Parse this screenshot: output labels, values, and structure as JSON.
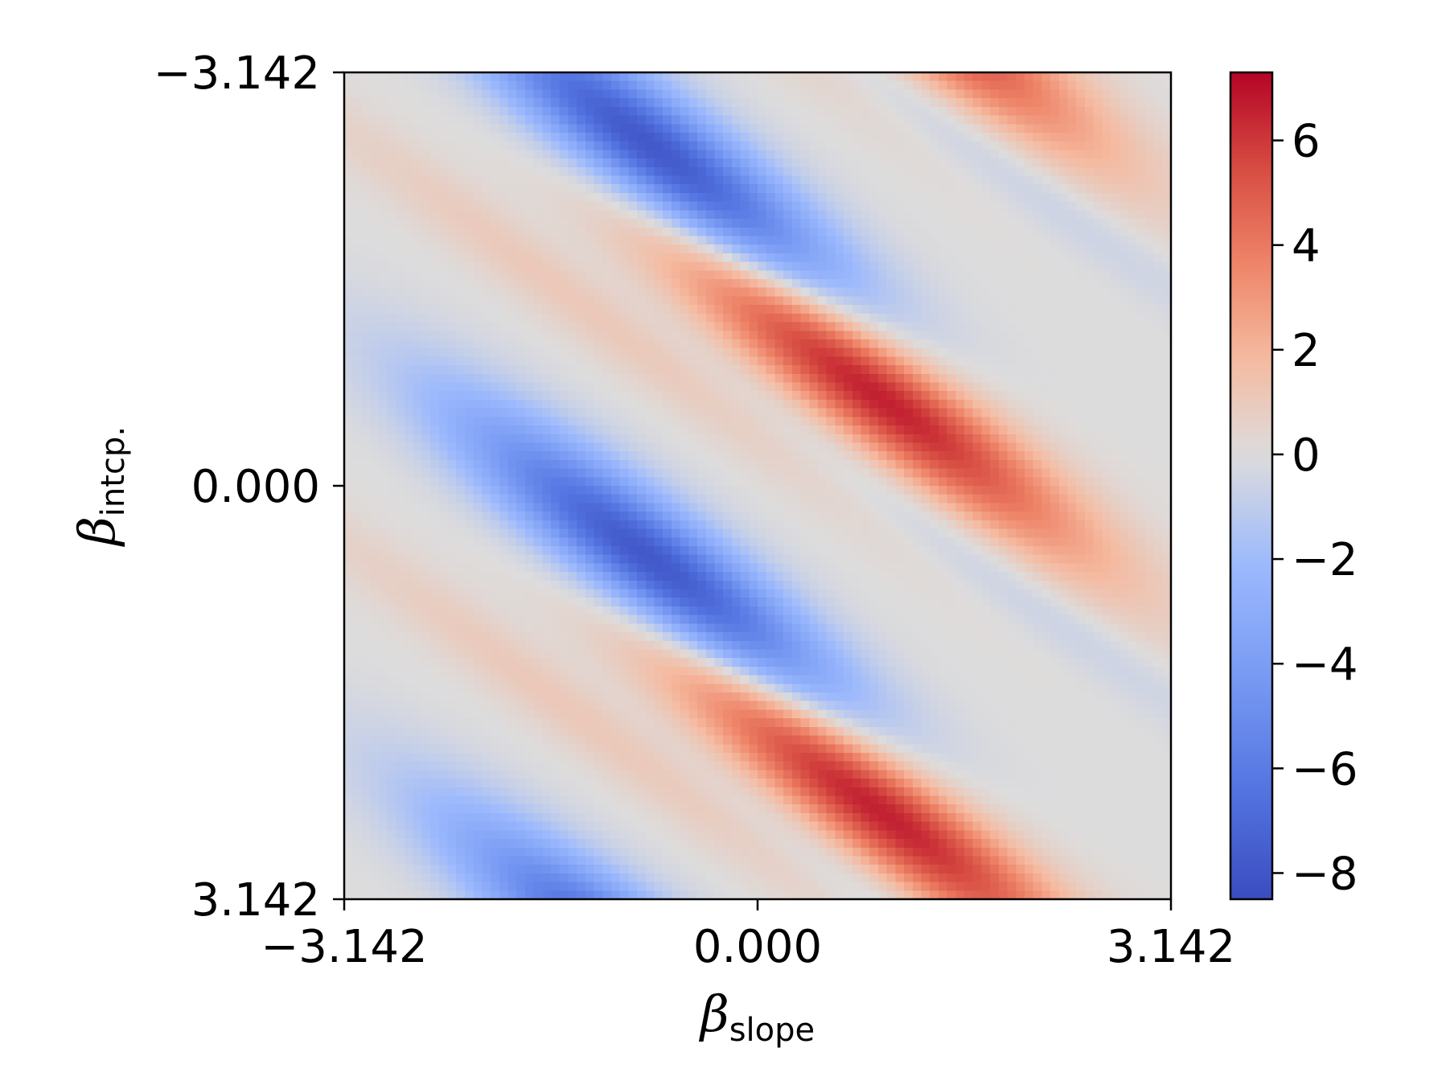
{
  "chart_data": {
    "type": "heatmap",
    "colormap": "coolwarm",
    "x_range": [
      -3.142,
      3.142
    ],
    "y_range": [
      -3.142,
      3.142
    ],
    "y_inverted": true,
    "x_ticks": [
      "−3.142",
      "0.000",
      "3.142"
    ],
    "x_tick_values": [
      -3.142,
      0.0,
      3.142
    ],
    "y_ticks": [
      "−3.142",
      "0.000",
      "3.142"
    ],
    "y_tick_values": [
      -3.142,
      0.0,
      3.142
    ],
    "xlabel": {
      "symbol": "β",
      "subscript": "slope"
    },
    "ylabel": {
      "symbol": "β",
      "subscript": "intcp."
    },
    "colorbar": {
      "vmin": -8.5,
      "vmax": 7.3,
      "ticks": [
        "6",
        "4",
        "2",
        "0",
        "−2",
        "−4",
        "−6",
        "−8"
      ],
      "tick_values": [
        6,
        4,
        2,
        0,
        -2,
        -4,
        -6,
        -8
      ]
    },
    "value_range": [
      -8.5,
      7.3
    ],
    "pattern": "periodic in intercept (period pi); negative lobes at negative slope, positive lobes at positive slope",
    "blobs": [
      {
        "sign": "negative",
        "peak": -8.4,
        "slope": -0.75,
        "intercept": -2.5
      },
      {
        "sign": "negative",
        "peak": -8.4,
        "slope": -0.75,
        "intercept": 0.64
      },
      {
        "sign": "positive",
        "peak": 7.2,
        "slope": 0.8,
        "intercept": -0.8
      },
      {
        "sign": "positive",
        "peak": 7.2,
        "slope": 0.8,
        "intercept": 2.34
      }
    ]
  }
}
